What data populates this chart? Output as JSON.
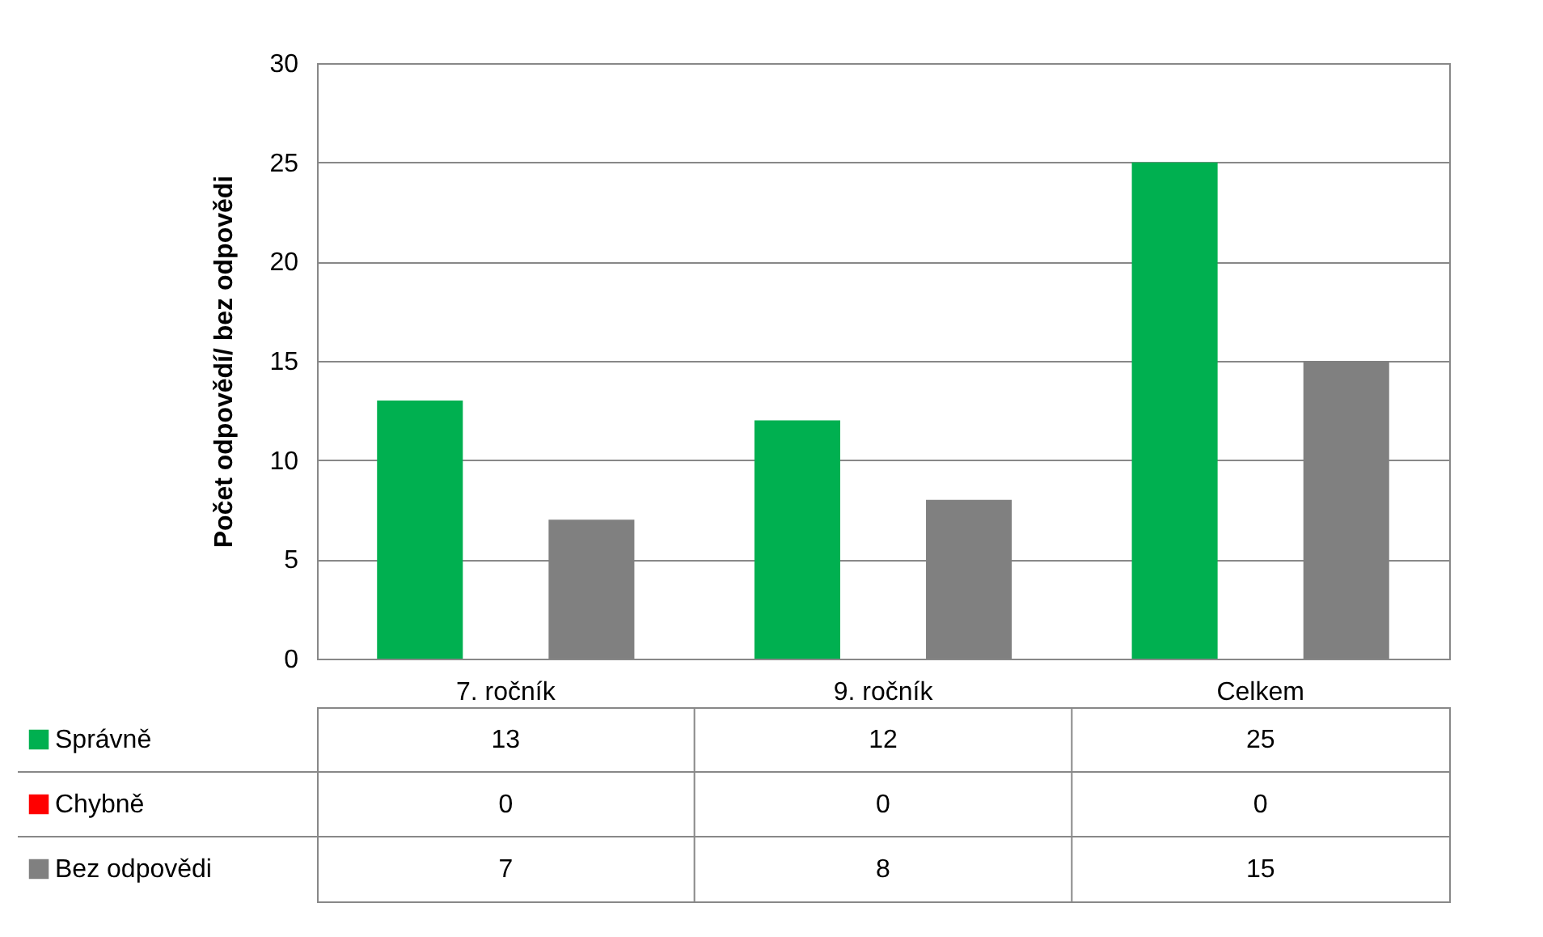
{
  "chart_data": {
    "type": "bar",
    "ylabel": "Počet odpovědí/ bez odpovědi",
    "categories": [
      "7. ročník",
      "9. ročník",
      "Celkem"
    ],
    "series": [
      {
        "name": "Správně",
        "color": "#00b050",
        "values": [
          13,
          12,
          25
        ]
      },
      {
        "name": "Chybně",
        "color": "#ff0000",
        "values": [
          0,
          0,
          0
        ]
      },
      {
        "name": "Bez odpovědi",
        "color": "#808080",
        "values": [
          7,
          8,
          15
        ]
      }
    ],
    "ylim": [
      0,
      30
    ],
    "yticks": [
      0,
      5,
      10,
      15,
      20,
      25,
      30
    ],
    "grid": "y",
    "legend": "bottom",
    "data_labels": true
  }
}
